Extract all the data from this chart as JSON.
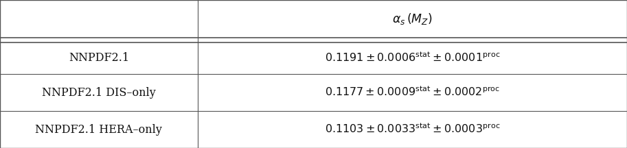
{
  "col_header": "$\\alpha_s\\,(M_Z)$",
  "rows": [
    {
      "label": "NNPDF2.1",
      "value": "$0.1191 \\pm 0.0006^{\\mathrm{stat}} \\pm 0.0001^{\\mathrm{proc}}$"
    },
    {
      "label": "NNPDF2.1 DIS–only",
      "value": "$0.1177 \\pm 0.0009^{\\mathrm{stat}} \\pm 0.0002^{\\mathrm{proc}}$"
    },
    {
      "label": "NNPDF2.1 HERA–only",
      "value": "$0.1103 \\pm 0.0033^{\\mathrm{stat}} \\pm 0.0003^{\\mathrm{proc}}$"
    }
  ],
  "col_split": 0.315,
  "bg_color": "#ffffff",
  "line_color": "#555555",
  "text_color": "#111111",
  "font_size": 11.5,
  "header_font_size": 12.5,
  "fig_width": 9.13,
  "fig_height": 2.16,
  "dpi": 100
}
